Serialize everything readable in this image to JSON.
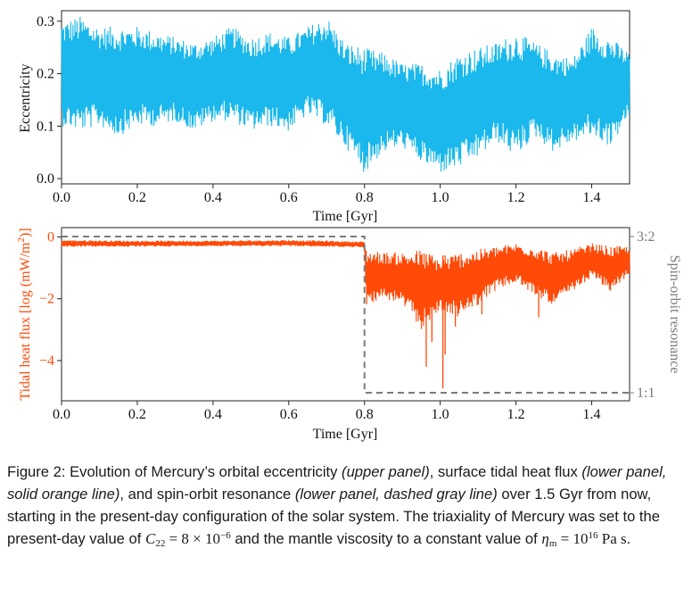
{
  "chart_data": [
    {
      "type": "line",
      "panel": "upper",
      "title": "",
      "xlabel": "Time [Gyr]",
      "ylabel": "Eccentricity",
      "xlim": [
        0.0,
        1.5
      ],
      "ylim": [
        -0.01,
        0.32
      ],
      "xticks": [
        "0.0",
        "0.2",
        "0.4",
        "0.6",
        "0.8",
        "1.0",
        "1.2",
        "1.4"
      ],
      "yticks": [
        "0.0",
        "0.1",
        "0.2",
        "0.3"
      ],
      "series": [
        {
          "name": "Eccentricity",
          "color": "#1ab8ec",
          "style": "solid",
          "envelope_x": [
            0.0,
            0.05,
            0.1,
            0.15,
            0.2,
            0.25,
            0.3,
            0.35,
            0.4,
            0.45,
            0.5,
            0.55,
            0.6,
            0.65,
            0.7,
            0.75,
            0.8,
            0.85,
            0.9,
            0.95,
            1.0,
            1.05,
            1.1,
            1.15,
            1.2,
            1.25,
            1.3,
            1.35,
            1.4,
            1.45,
            1.5
          ],
          "envelope_min": [
            0.1,
            0.09,
            0.1,
            0.08,
            0.1,
            0.1,
            0.11,
            0.09,
            0.11,
            0.11,
            0.09,
            0.1,
            0.09,
            0.12,
            0.1,
            0.06,
            0.01,
            0.05,
            0.06,
            0.03,
            0.01,
            0.02,
            0.04,
            0.07,
            0.04,
            0.08,
            0.05,
            0.07,
            0.08,
            0.06,
            0.12
          ],
          "envelope_max": [
            0.3,
            0.31,
            0.29,
            0.29,
            0.29,
            0.28,
            0.27,
            0.26,
            0.27,
            0.29,
            0.27,
            0.28,
            0.27,
            0.29,
            0.31,
            0.26,
            0.25,
            0.24,
            0.22,
            0.22,
            0.21,
            0.24,
            0.25,
            0.26,
            0.28,
            0.26,
            0.24,
            0.23,
            0.29,
            0.27,
            0.24
          ]
        }
      ]
    },
    {
      "type": "line",
      "panel": "lower",
      "title": "",
      "xlabel": "Time [Gyr]",
      "ylabel": "Tidal heat flux [log (mW/m²)]",
      "ylabel_parts": [
        "Tidal heat flux [log (mW/m",
        "2",
        ")]"
      ],
      "ylabel_right": "Spin-orbit resonance",
      "xlim": [
        0.0,
        1.5
      ],
      "ylim": [
        -5.3,
        0.3
      ],
      "xticks": [
        "0.0",
        "0.2",
        "0.4",
        "0.6",
        "0.8",
        "1.0",
        "1.2",
        "1.4"
      ],
      "yticks": [
        "0",
        "−2",
        "−4"
      ],
      "right_ticks": [
        "3:2",
        "1:1"
      ],
      "series": [
        {
          "name": "Tidal heat flux",
          "color": "#ff4a08",
          "style": "solid",
          "envelope_x": [
            0.0,
            0.2,
            0.4,
            0.6,
            0.7,
            0.8,
            0.805,
            0.85,
            0.9,
            0.95,
            1.0,
            1.05,
            1.1,
            1.15,
            1.2,
            1.25,
            1.3,
            1.35,
            1.4,
            1.45,
            1.5
          ],
          "envelope_min": [
            -0.32,
            -0.32,
            -0.3,
            -0.3,
            -0.32,
            -0.35,
            -2.2,
            -2.0,
            -2.2,
            -3.0,
            -2.4,
            -2.6,
            -2.2,
            -1.7,
            -1.5,
            -1.9,
            -2.2,
            -1.8,
            -1.3,
            -1.8,
            -1.2
          ],
          "envelope_max": [
            -0.1,
            -0.12,
            -0.12,
            -0.1,
            -0.12,
            -0.15,
            -0.4,
            -0.5,
            -0.5,
            -0.4,
            -0.7,
            -0.5,
            -0.4,
            -0.3,
            -0.2,
            -0.3,
            -0.5,
            -0.4,
            -0.2,
            -0.3,
            -0.3
          ],
          "spikes": [
            [
              0.963,
              -4.2
            ],
            [
              0.978,
              -3.4
            ],
            [
              1.007,
              -4.9
            ],
            [
              1.013,
              -3.8
            ],
            [
              1.04,
              -2.9
            ],
            [
              1.11,
              -2.5
            ],
            [
              1.26,
              -2.6
            ]
          ]
        },
        {
          "name": "Spin-orbit resonance",
          "color": "#7b7b7b",
          "style": "dashed",
          "x": [
            0.0,
            0.8,
            0.8,
            1.5
          ],
          "values": [
            "3:2",
            "3:2",
            "1:1",
            "1:1"
          ]
        }
      ]
    }
  ],
  "caption": {
    "p1": "Figure 2: Evolution of Mercury’s orbital eccentricity ",
    "i1": "(upper panel)",
    "p2": ", surface tidal heat flux ",
    "i2": "(lower panel, solid orange line)",
    "p3": ", and spin-orbit resonance ",
    "i3": "(lower panel, dashed gray line)",
    "p4": " over 1.5 Gyr from now, starting in the present-day configuration of the solar system. The triaxiality of Mercury was set to the present-day value of ",
    "m1_sym": "C",
    "m1_sub": "22",
    "m1_rest": " = 8 × 10",
    "m1_exp": "−6",
    "p5": " and the mantle viscosity to a constant value of ",
    "m2_sym": "η",
    "m2_sub": "m",
    "m2_rest": " = 10",
    "m2_exp": "16",
    "m2_unit": " Pa s",
    "p6": "."
  }
}
